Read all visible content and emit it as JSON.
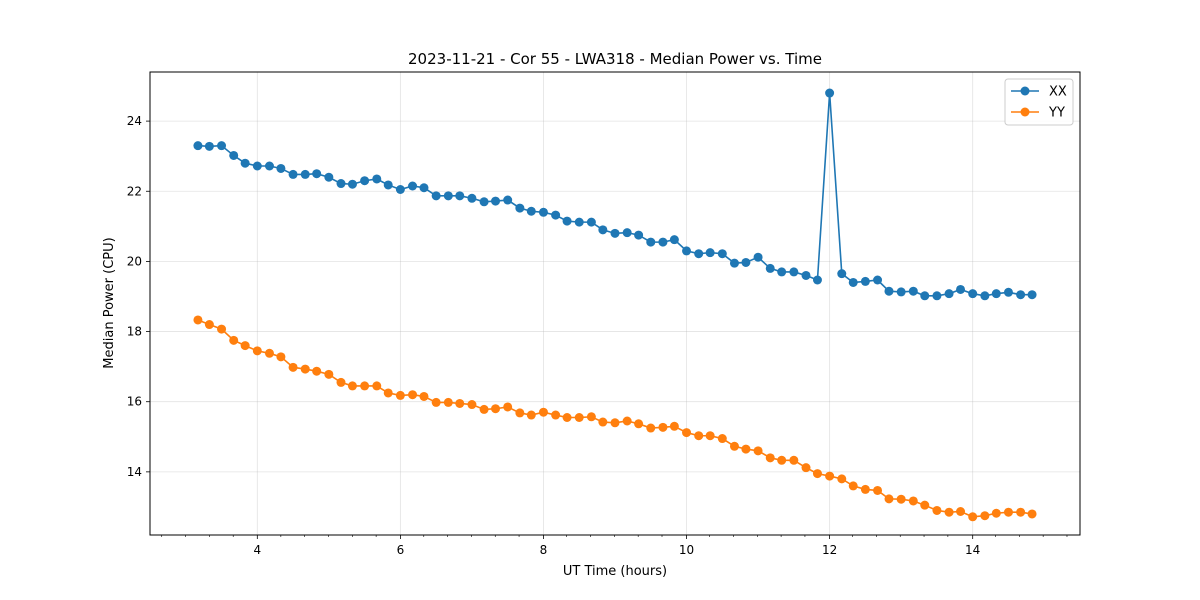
{
  "chart_data": {
    "type": "line",
    "title": "2023-11-21 - Cor 55 - LWA318 - Median Power vs. Time",
    "xlabel": "UT Time (hours)",
    "ylabel": "Median Power (CPU)",
    "xlim": [
      2.5,
      15.5
    ],
    "ylim": [
      12.2,
      25.4
    ],
    "xticks": [
      4,
      6,
      8,
      10,
      12,
      14
    ],
    "xminor_step": 0.333,
    "yticks": [
      14,
      16,
      18,
      20,
      22,
      24
    ],
    "grid": true,
    "legend_position": "top-right",
    "x": [
      3.17,
      3.33,
      3.5,
      3.67,
      3.83,
      4.0,
      4.17,
      4.33,
      4.5,
      4.67,
      4.83,
      5.0,
      5.17,
      5.33,
      5.5,
      5.67,
      5.83,
      6.0,
      6.17,
      6.33,
      6.5,
      6.67,
      6.83,
      7.0,
      7.17,
      7.33,
      7.5,
      7.67,
      7.83,
      8.0,
      8.17,
      8.33,
      8.5,
      8.67,
      8.83,
      9.0,
      9.17,
      9.33,
      9.5,
      9.67,
      9.83,
      10.0,
      10.17,
      10.33,
      10.5,
      10.67,
      10.83,
      11.0,
      11.17,
      11.33,
      11.5,
      11.67,
      11.83,
      12.0,
      12.17,
      12.33,
      12.5,
      12.67,
      12.83,
      13.0,
      13.17,
      13.33,
      13.5,
      13.67,
      13.83,
      14.0,
      14.17,
      14.33,
      14.5,
      14.67,
      14.83
    ],
    "series": [
      {
        "name": "XX",
        "color": "#1f77b4",
        "values": [
          23.3,
          23.28,
          23.3,
          23.02,
          22.8,
          22.72,
          22.72,
          22.65,
          22.48,
          22.48,
          22.5,
          22.4,
          22.22,
          22.2,
          22.3,
          22.35,
          22.18,
          22.05,
          22.15,
          22.1,
          21.87,
          21.87,
          21.87,
          21.8,
          21.7,
          21.72,
          21.75,
          21.52,
          21.43,
          21.4,
          21.32,
          21.15,
          21.12,
          21.12,
          20.9,
          20.8,
          20.82,
          20.75,
          20.55,
          20.55,
          20.62,
          20.3,
          20.22,
          20.25,
          20.22,
          19.95,
          19.97,
          20.12,
          19.8,
          19.7,
          19.7,
          19.6,
          19.47,
          24.8,
          19.65,
          19.4,
          19.43,
          19.47,
          19.15,
          19.13,
          19.15,
          19.02,
          19.02,
          19.08,
          19.2,
          19.08,
          19.02,
          19.08,
          19.12,
          19.05,
          19.05
        ]
      },
      {
        "name": "YY",
        "color": "#ff7f0e",
        "values": [
          18.33,
          18.2,
          18.07,
          17.75,
          17.6,
          17.45,
          17.38,
          17.28,
          16.98,
          16.93,
          16.87,
          16.78,
          16.55,
          16.45,
          16.45,
          16.45,
          16.25,
          16.18,
          16.2,
          16.15,
          15.98,
          15.98,
          15.95,
          15.92,
          15.78,
          15.8,
          15.85,
          15.68,
          15.62,
          15.7,
          15.62,
          15.55,
          15.55,
          15.57,
          15.42,
          15.4,
          15.45,
          15.37,
          15.25,
          15.27,
          15.3,
          15.12,
          15.03,
          15.03,
          14.95,
          14.73,
          14.65,
          14.6,
          14.4,
          14.33,
          14.33,
          14.12,
          13.95,
          13.88,
          13.8,
          13.6,
          13.5,
          13.47,
          13.23,
          13.22,
          13.17,
          13.05,
          12.9,
          12.85,
          12.87,
          12.72,
          12.75,
          12.82,
          12.85,
          12.85,
          12.8
        ]
      }
    ]
  }
}
